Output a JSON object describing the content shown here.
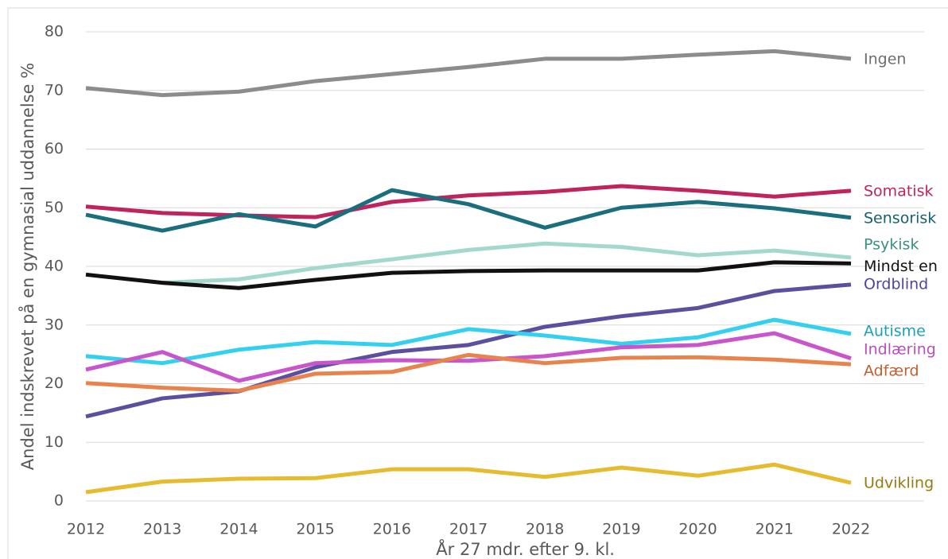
{
  "chart_data": {
    "type": "line",
    "x_label": "År 27 mdr. efter 9. kl.",
    "y_label": "Andel indskrevet på en gymnasial uddannelse %",
    "x": [
      2012,
      2013,
      2014,
      2015,
      2016,
      2017,
      2018,
      2019,
      2020,
      2021,
      2022
    ],
    "xlim": [
      2012,
      2022
    ],
    "xticks": [
      2012,
      2013,
      2014,
      2015,
      2016,
      2017,
      2018,
      2019,
      2020,
      2021,
      2022
    ],
    "ylim": [
      0,
      80
    ],
    "yticks": [
      0,
      10,
      20,
      30,
      40,
      50,
      60,
      70,
      80
    ],
    "grid": true,
    "series": [
      {
        "name": "Ingen",
        "color": "#8c8c8c",
        "label_color": "#6e6e6e",
        "values": [
          70.4,
          69.2,
          69.8,
          71.6,
          72.8,
          74.0,
          75.4,
          75.4,
          76.1,
          76.7,
          75.4
        ]
      },
      {
        "name": "Somatisk",
        "color": "#c0245c",
        "label_color": "#c0245c",
        "values": [
          50.2,
          49.1,
          48.7,
          48.4,
          51.0,
          52.1,
          52.7,
          53.7,
          52.9,
          51.9,
          52.9
        ]
      },
      {
        "name": "Sensorisk",
        "color": "#1a6e7e",
        "label_color": "#16606e",
        "values": [
          48.8,
          46.1,
          48.9,
          46.8,
          53.0,
          50.6,
          46.6,
          50.0,
          51.0,
          49.9,
          48.3
        ]
      },
      {
        "name": "Psykisk",
        "color": "#a3d9cc",
        "label_color": "#3a9080",
        "values": [
          null,
          37.2,
          37.8,
          39.7,
          41.2,
          42.8,
          43.9,
          43.3,
          41.9,
          42.7,
          41.5
        ]
      },
      {
        "name": "Mindst en",
        "color": "#111111",
        "label_color": "#111111",
        "values": [
          38.6,
          37.2,
          36.3,
          37.7,
          38.9,
          39.2,
          39.3,
          39.3,
          39.3,
          40.7,
          40.5
        ]
      },
      {
        "name": "Ordblind",
        "color": "#5b4fa0",
        "label_color": "#4e44a0",
        "values": [
          14.4,
          17.5,
          18.7,
          22.8,
          25.4,
          26.6,
          29.7,
          31.5,
          32.9,
          35.8,
          36.9
        ]
      },
      {
        "name": "Autisme",
        "color": "#33d0f0",
        "label_color": "#1a9fc0",
        "values": [
          24.7,
          23.5,
          25.8,
          27.1,
          26.6,
          29.3,
          28.2,
          26.8,
          27.9,
          30.9,
          28.5
        ]
      },
      {
        "name": "Indlæring",
        "color": "#c855cc",
        "label_color": "#b84fc0",
        "values": [
          22.4,
          25.4,
          20.5,
          23.5,
          24.0,
          23.9,
          24.7,
          26.2,
          26.6,
          28.6,
          24.3
        ]
      },
      {
        "name": "Adfærd",
        "color": "#e8834e",
        "label_color": "#c06030",
        "values": [
          20.1,
          19.3,
          18.8,
          21.7,
          22.0,
          24.9,
          23.5,
          24.4,
          24.5,
          24.1,
          23.3
        ]
      },
      {
        "name": "Udvikling",
        "color": "#e6bb2e",
        "label_color": "#9a7a10",
        "values": [
          1.5,
          3.3,
          3.8,
          3.9,
          5.4,
          5.4,
          4.1,
          5.7,
          4.3,
          6.2,
          3.1
        ]
      }
    ]
  }
}
